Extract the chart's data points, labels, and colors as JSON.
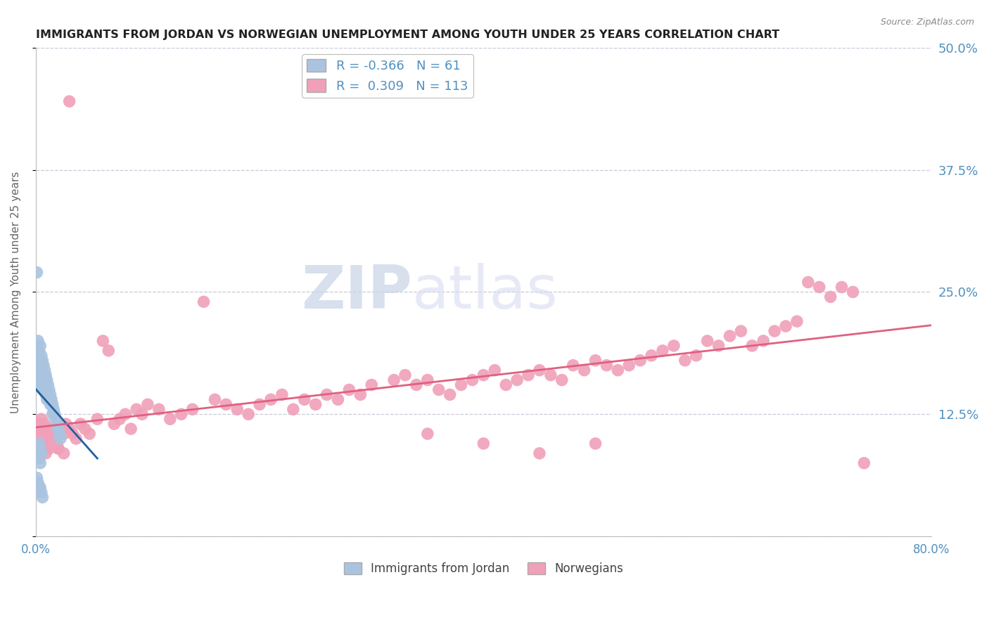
{
  "title": "IMMIGRANTS FROM JORDAN VS NORWEGIAN UNEMPLOYMENT AMONG YOUTH UNDER 25 YEARS CORRELATION CHART",
  "source": "Source: ZipAtlas.com",
  "ylabel": "Unemployment Among Youth under 25 years",
  "xlim": [
    0.0,
    0.8
  ],
  "ylim": [
    0.0,
    0.5
  ],
  "yticks": [
    0.0,
    0.125,
    0.25,
    0.375,
    0.5
  ],
  "ytick_labels": [
    "",
    "12.5%",
    "25.0%",
    "37.5%",
    "50.0%"
  ],
  "xtick_labels": [
    "0.0%",
    "",
    "",
    "",
    "",
    "",
    "",
    "",
    "80.0%"
  ],
  "blue_R": -0.366,
  "blue_N": 61,
  "pink_R": 0.309,
  "pink_N": 113,
  "blue_color": "#aac4e0",
  "blue_line_color": "#2060a0",
  "pink_color": "#f0a0b8",
  "pink_line_color": "#e06080",
  "axis_label_color": "#5090c0",
  "title_color": "#222222",
  "grid_color": "#c8c8d8",
  "background_color": "#ffffff",
  "blue_x": [
    0.001,
    0.002,
    0.002,
    0.002,
    0.003,
    0.003,
    0.003,
    0.003,
    0.003,
    0.004,
    0.004,
    0.004,
    0.004,
    0.004,
    0.005,
    0.005,
    0.005,
    0.005,
    0.006,
    0.006,
    0.006,
    0.006,
    0.007,
    0.007,
    0.007,
    0.008,
    0.008,
    0.008,
    0.009,
    0.009,
    0.009,
    0.01,
    0.01,
    0.01,
    0.011,
    0.011,
    0.012,
    0.012,
    0.013,
    0.013,
    0.014,
    0.015,
    0.015,
    0.016,
    0.017,
    0.018,
    0.019,
    0.02,
    0.021,
    0.022,
    0.001,
    0.002,
    0.003,
    0.004,
    0.005,
    0.006,
    0.003,
    0.004,
    0.005,
    0.003,
    0.004
  ],
  "blue_y": [
    0.27,
    0.2,
    0.185,
    0.175,
    0.19,
    0.18,
    0.17,
    0.16,
    0.155,
    0.195,
    0.18,
    0.17,
    0.16,
    0.155,
    0.185,
    0.175,
    0.165,
    0.155,
    0.18,
    0.17,
    0.16,
    0.15,
    0.175,
    0.165,
    0.155,
    0.17,
    0.16,
    0.15,
    0.165,
    0.155,
    0.145,
    0.16,
    0.15,
    0.14,
    0.155,
    0.145,
    0.15,
    0.14,
    0.145,
    0.135,
    0.14,
    0.135,
    0.125,
    0.13,
    0.125,
    0.12,
    0.115,
    0.11,
    0.105,
    0.1,
    0.06,
    0.055,
    0.05,
    0.05,
    0.045,
    0.04,
    0.095,
    0.09,
    0.085,
    0.08,
    0.075
  ],
  "pink_x": [
    0.003,
    0.004,
    0.005,
    0.006,
    0.007,
    0.008,
    0.009,
    0.01,
    0.011,
    0.012,
    0.013,
    0.014,
    0.015,
    0.016,
    0.017,
    0.018,
    0.019,
    0.02,
    0.022,
    0.025,
    0.027,
    0.03,
    0.033,
    0.036,
    0.04,
    0.044,
    0.048,
    0.055,
    0.06,
    0.065,
    0.07,
    0.075,
    0.08,
    0.085,
    0.09,
    0.095,
    0.1,
    0.11,
    0.12,
    0.13,
    0.14,
    0.15,
    0.16,
    0.17,
    0.18,
    0.19,
    0.2,
    0.21,
    0.22,
    0.23,
    0.24,
    0.25,
    0.26,
    0.27,
    0.28,
    0.29,
    0.3,
    0.32,
    0.33,
    0.34,
    0.35,
    0.36,
    0.37,
    0.38,
    0.39,
    0.4,
    0.41,
    0.42,
    0.43,
    0.44,
    0.45,
    0.46,
    0.47,
    0.48,
    0.49,
    0.5,
    0.51,
    0.52,
    0.53,
    0.54,
    0.55,
    0.56,
    0.57,
    0.58,
    0.59,
    0.6,
    0.61,
    0.62,
    0.63,
    0.64,
    0.65,
    0.66,
    0.67,
    0.68,
    0.69,
    0.7,
    0.71,
    0.72,
    0.73,
    0.74,
    0.005,
    0.008,
    0.01,
    0.012,
    0.015,
    0.018,
    0.02,
    0.025,
    0.03,
    0.35,
    0.4,
    0.45,
    0.5
  ],
  "pink_y": [
    0.115,
    0.11,
    0.105,
    0.1,
    0.095,
    0.09,
    0.085,
    0.1,
    0.095,
    0.09,
    0.105,
    0.1,
    0.095,
    0.11,
    0.105,
    0.1,
    0.095,
    0.09,
    0.11,
    0.105,
    0.115,
    0.11,
    0.105,
    0.1,
    0.115,
    0.11,
    0.105,
    0.12,
    0.2,
    0.19,
    0.115,
    0.12,
    0.125,
    0.11,
    0.13,
    0.125,
    0.135,
    0.13,
    0.12,
    0.125,
    0.13,
    0.24,
    0.14,
    0.135,
    0.13,
    0.125,
    0.135,
    0.14,
    0.145,
    0.13,
    0.14,
    0.135,
    0.145,
    0.14,
    0.15,
    0.145,
    0.155,
    0.16,
    0.165,
    0.155,
    0.16,
    0.15,
    0.145,
    0.155,
    0.16,
    0.165,
    0.17,
    0.155,
    0.16,
    0.165,
    0.17,
    0.165,
    0.16,
    0.175,
    0.17,
    0.18,
    0.175,
    0.17,
    0.175,
    0.18,
    0.185,
    0.19,
    0.195,
    0.18,
    0.185,
    0.2,
    0.195,
    0.205,
    0.21,
    0.195,
    0.2,
    0.21,
    0.215,
    0.22,
    0.26,
    0.255,
    0.245,
    0.255,
    0.25,
    0.075,
    0.12,
    0.115,
    0.11,
    0.105,
    0.1,
    0.095,
    0.09,
    0.085,
    0.445,
    0.105,
    0.095,
    0.085,
    0.095
  ]
}
